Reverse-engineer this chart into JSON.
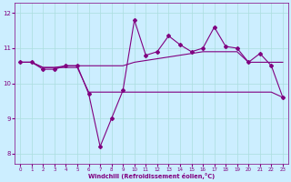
{
  "x": [
    0,
    1,
    2,
    3,
    4,
    5,
    6,
    7,
    8,
    9,
    10,
    11,
    12,
    13,
    14,
    15,
    16,
    17,
    18,
    19,
    20,
    21,
    22,
    23
  ],
  "line_marker_y": [
    10.6,
    10.6,
    10.4,
    10.4,
    10.5,
    10.5,
    9.7,
    8.2,
    9.0,
    9.8,
    11.8,
    10.8,
    10.9,
    11.35,
    11.1,
    10.9,
    11.0,
    11.6,
    11.05,
    11.0,
    10.6,
    10.85,
    10.5,
    9.6
  ],
  "line_top_y": [
    10.6,
    10.6,
    10.45,
    10.45,
    10.5,
    10.5,
    10.5,
    10.5,
    10.5,
    10.5,
    10.6,
    10.65,
    10.7,
    10.75,
    10.8,
    10.85,
    10.9,
    10.9,
    10.9,
    10.9,
    10.6,
    10.6,
    10.6,
    10.6
  ],
  "line_bot_y": [
    10.6,
    10.6,
    10.45,
    10.45,
    10.45,
    10.45,
    9.75,
    9.75,
    9.75,
    9.75,
    9.75,
    9.75,
    9.75,
    9.75,
    9.75,
    9.75,
    9.75,
    9.75,
    9.75,
    9.75,
    9.75,
    9.75,
    9.75,
    9.6
  ],
  "line_color": "#800080",
  "bg_color": "#cceeff",
  "grid_color": "#aadddd",
  "xlabel": "Windchill (Refroidissement éolien,°C)",
  "ylim": [
    7.7,
    12.3
  ],
  "xlim": [
    -0.5,
    23.5
  ],
  "yticks": [
    8,
    9,
    10,
    11,
    12
  ],
  "xticks": [
    0,
    1,
    2,
    3,
    4,
    5,
    6,
    7,
    8,
    9,
    10,
    11,
    12,
    13,
    14,
    15,
    16,
    17,
    18,
    19,
    20,
    21,
    22,
    23
  ]
}
